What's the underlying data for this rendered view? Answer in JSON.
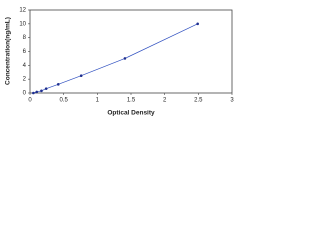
{
  "chart_data": {
    "type": "line",
    "x_label": "Optical Density",
    "y_label": "Concentration(ng/mL)",
    "x": [
      0.05,
      0.1,
      0.17,
      0.24,
      0.42,
      0.76,
      1.41,
      2.49
    ],
    "series": [
      {
        "color": "#1f2f8f",
        "line_color": "#3050c0",
        "values": [
          0,
          0.156,
          0.312,
          0.625,
          1.25,
          2.5,
          5,
          10
        ]
      }
    ],
    "xlim": [
      0,
      3
    ],
    "xticks": [
      0,
      0.5,
      1,
      1.5,
      2,
      2.5,
      3
    ],
    "ylim": [
      0,
      12
    ],
    "yticks": [
      0,
      2,
      4,
      6,
      8,
      10,
      12
    ]
  }
}
